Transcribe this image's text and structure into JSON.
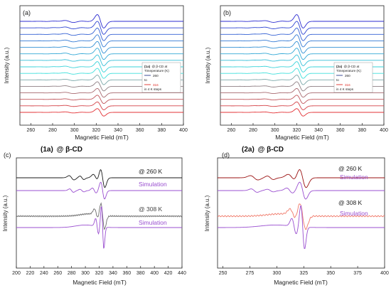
{
  "chart_data": [
    {
      "type": "line",
      "panel_label": "(a)",
      "xlabel": "Magnetic Field (mT)",
      "ylabel": "Intensity (a.u.)",
      "xlim": [
        250,
        400
      ],
      "xticks": [
        260,
        280,
        300,
        320,
        340,
        360,
        380,
        400
      ],
      "center_field": 324,
      "legend": {
        "title_sample": "(1a)",
        "title_host": "@ β-CD at",
        "title_line2": "Timeperature (K):",
        "start": "260",
        "to": "to",
        "end": "316",
        "steps": "in 4 K steps",
        "position": "right",
        "start_color": "#2a3b8f",
        "end_color": "#e0302a"
      },
      "series": [
        {
          "temperature_K": 260,
          "color": "#2b2bd0"
        },
        {
          "temperature_K": 264,
          "color": "#2f45d2"
        },
        {
          "temperature_K": 268,
          "color": "#3360d4"
        },
        {
          "temperature_K": 272,
          "color": "#347ad4"
        },
        {
          "temperature_K": 276,
          "color": "#3591d4"
        },
        {
          "temperature_K": 280,
          "color": "#33a8d6"
        },
        {
          "temperature_K": 284,
          "color": "#35bfd8"
        },
        {
          "temperature_K": 288,
          "color": "#39d3da"
        },
        {
          "temperature_K": 292,
          "color": "#3ee0dc"
        },
        {
          "temperature_K": 296,
          "color": "#7aa6a8"
        },
        {
          "temperature_K": 300,
          "color": "#8f7f84"
        },
        {
          "temperature_K": 304,
          "color": "#a86a70"
        },
        {
          "temperature_K": 308,
          "color": "#c0555b"
        },
        {
          "temperature_K": 312,
          "color": "#d44247"
        },
        {
          "temperature_K": 316,
          "color": "#e33034"
        }
      ]
    },
    {
      "type": "line",
      "panel_label": "(b)",
      "xlabel": "Magnetic Field (mT)",
      "ylabel": "Intensity (a.u.)",
      "xlim": [
        250,
        400
      ],
      "xticks": [
        260,
        280,
        300,
        320,
        340,
        360,
        380,
        400
      ],
      "center_field": 323,
      "legend": {
        "title_sample": "(2a)",
        "title_host": "@ β-CD at",
        "title_line2": "Timeperature (K):",
        "start": "260",
        "to": "to",
        "end": "316",
        "steps": "in 4 K steps",
        "position": "right",
        "start_color": "#2a3b8f",
        "end_color": "#e0302a"
      },
      "series": [
        {
          "temperature_K": 260,
          "color": "#2b2bd0"
        },
        {
          "temperature_K": 264,
          "color": "#2f45d2"
        },
        {
          "temperature_K": 268,
          "color": "#3360d4"
        },
        {
          "temperature_K": 272,
          "color": "#347ad4"
        },
        {
          "temperature_K": 276,
          "color": "#3591d4"
        },
        {
          "temperature_K": 280,
          "color": "#33a8d6"
        },
        {
          "temperature_K": 284,
          "color": "#35bfd8"
        },
        {
          "temperature_K": 288,
          "color": "#39d3da"
        },
        {
          "temperature_K": 292,
          "color": "#3ee0dc"
        },
        {
          "temperature_K": 296,
          "color": "#7aa6a8"
        },
        {
          "temperature_K": 300,
          "color": "#8f7f84"
        },
        {
          "temperature_K": 304,
          "color": "#a86a70"
        },
        {
          "temperature_K": 308,
          "color": "#c0555b"
        },
        {
          "temperature_K": 312,
          "color": "#d44247"
        },
        {
          "temperature_K": 316,
          "color": "#e33034"
        }
      ]
    },
    {
      "type": "line",
      "panel_label": "(c)",
      "title_sample": "(1a)",
      "title_host": "@ β-CD",
      "xlabel": "Magnetic Field (mT)",
      "ylabel": "Intensity (a.u.)",
      "xlim": [
        200,
        440
      ],
      "xticks": [
        200,
        220,
        240,
        260,
        280,
        300,
        320,
        340,
        360,
        380,
        400,
        420,
        440
      ],
      "center_field": 325,
      "series": [
        {
          "label": "@ 260 K",
          "kind": "experiment",
          "temperature_K": 260,
          "color": "#1a1a1a"
        },
        {
          "label": "Simulation",
          "kind": "simulation",
          "temperature_K": 260,
          "color": "#9a4fd0"
        },
        {
          "label": "@ 308 K",
          "kind": "experiment",
          "temperature_K": 308,
          "color": "#6e6e6e"
        },
        {
          "label": "Simulation",
          "kind": "simulation",
          "temperature_K": 308,
          "color": "#9a4fd0"
        }
      ]
    },
    {
      "type": "line",
      "panel_label": "(d)",
      "title_sample": "(2a)",
      "title_host": "@ β-CD",
      "xlabel": "Magnetic Field (mT)",
      "ylabel": "Intensity (a.u.)",
      "xlim": [
        245,
        400
      ],
      "xticks": [
        250,
        275,
        300,
        325,
        350,
        375,
        400
      ],
      "center_field": 324,
      "series": [
        {
          "label": "@ 260 K",
          "kind": "experiment",
          "temperature_K": 260,
          "color": "#9a1010"
        },
        {
          "label": "Simulation",
          "kind": "simulation",
          "temperature_K": 260,
          "color": "#9a4fd0"
        },
        {
          "label": "@ 308 K",
          "kind": "experiment",
          "temperature_K": 308,
          "color": "#f07868"
        },
        {
          "label": "Simulation",
          "kind": "simulation",
          "temperature_K": 308,
          "color": "#9a4fd0"
        }
      ]
    }
  ]
}
